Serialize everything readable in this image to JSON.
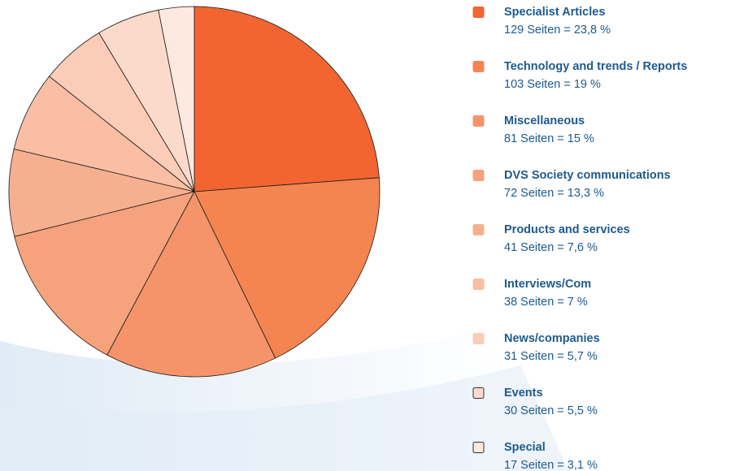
{
  "chart_data": {
    "type": "pie",
    "categories": [
      "Specialist Articles",
      "Technology and trends / Reports",
      "Miscellaneous",
      "DVS Society communications",
      "Products and services",
      "Interviews/Com",
      "News/companies",
      "Events",
      "Special"
    ],
    "values": [
      23.8,
      19,
      15,
      13.3,
      7.6,
      7,
      5.7,
      5.5,
      3.1
    ],
    "value_labels": [
      "129 Seiten = 23,8 %",
      "103 Seiten = 19 %",
      "81 Seiten = 15 %",
      "72 Seiten = 13,3 %",
      "41 Seiten = 7,6 %",
      "38 Seiten = 7 %",
      "31 Seiten = 5,7 %",
      "30 Seiten = 5,5 %",
      "17 Seiten = 3,1 %"
    ],
    "colors": [
      "#f26531",
      "#f48550",
      "#f5946a",
      "#f6a27c",
      "#f7b08f",
      "#f9bea3",
      "#fbccb7",
      "#fcdacb",
      "#fee9e0"
    ],
    "legend": "right"
  }
}
